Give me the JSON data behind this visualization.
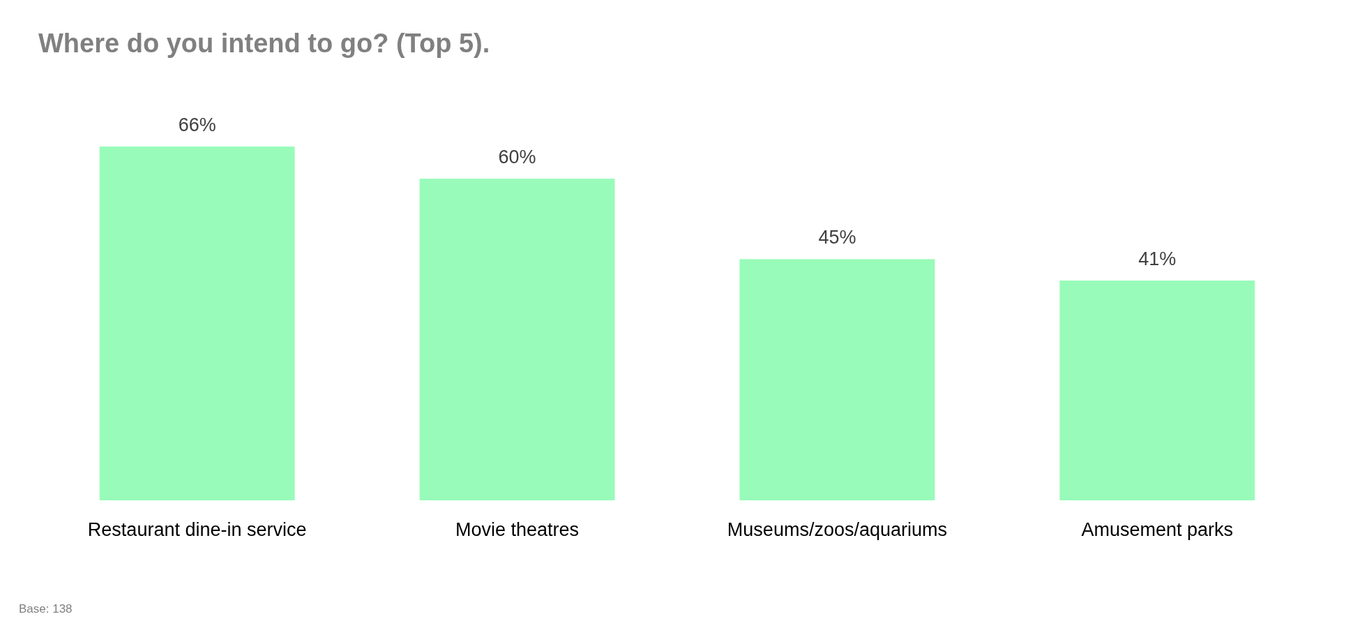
{
  "chart_data": {
    "type": "bar",
    "title": "Where do you intend to go? (Top 5).",
    "categories": [
      "Restaurant dine-in service",
      "Movie theatres",
      "Museums/zoos/aquariums",
      "Amusement parks"
    ],
    "values": [
      66,
      60,
      45,
      41
    ],
    "value_labels": [
      "66%",
      "60%",
      "45%",
      "41%"
    ],
    "color": "#99fbb9",
    "annotations": [
      "Base: 138"
    ]
  }
}
